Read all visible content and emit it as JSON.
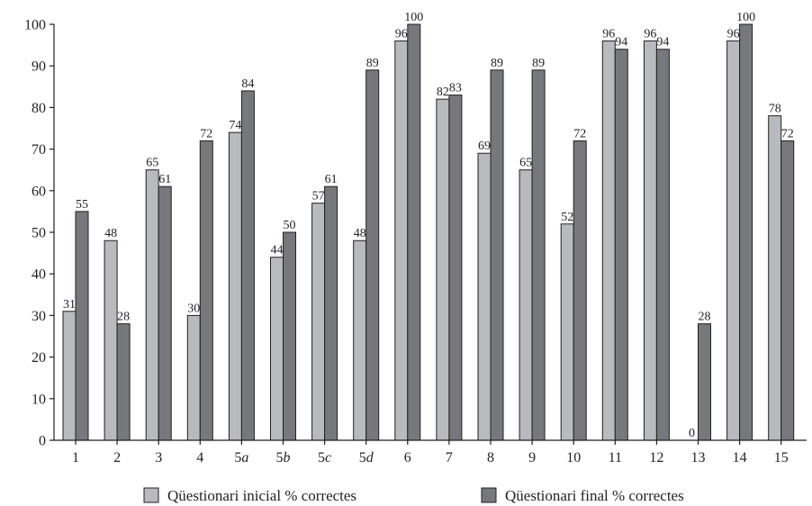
{
  "chart_data": {
    "type": "bar",
    "title": "",
    "xlabel": "",
    "ylabel": "",
    "ylim": [
      0,
      100
    ],
    "yticks": [
      0,
      10,
      20,
      30,
      40,
      50,
      60,
      70,
      80,
      90,
      100
    ],
    "grid": false,
    "legend_position": "bottom",
    "categories": [
      "1",
      "2",
      "3",
      "4",
      "5a",
      "5b",
      "5c",
      "5d",
      "6",
      "7",
      "8",
      "9",
      "10",
      "11",
      "12",
      "13",
      "14",
      "15"
    ],
    "category_italic_suffix": [
      false,
      false,
      false,
      false,
      true,
      true,
      true,
      true,
      false,
      false,
      false,
      false,
      false,
      false,
      false,
      false,
      false,
      false
    ],
    "series": [
      {
        "name": "Qüestionari inicial % correctes",
        "color": "#b9babd",
        "values": [
          31,
          48,
          65,
          30,
          74,
          44,
          57,
          48,
          96,
          82,
          69,
          65,
          52,
          96,
          96,
          0,
          96,
          78
        ]
      },
      {
        "name": "Qüestionari final % correctes",
        "color": "#77787b",
        "values": [
          55,
          28,
          61,
          72,
          84,
          50,
          61,
          89,
          100,
          83,
          89,
          89,
          72,
          94,
          94,
          28,
          100,
          72
        ]
      }
    ]
  }
}
